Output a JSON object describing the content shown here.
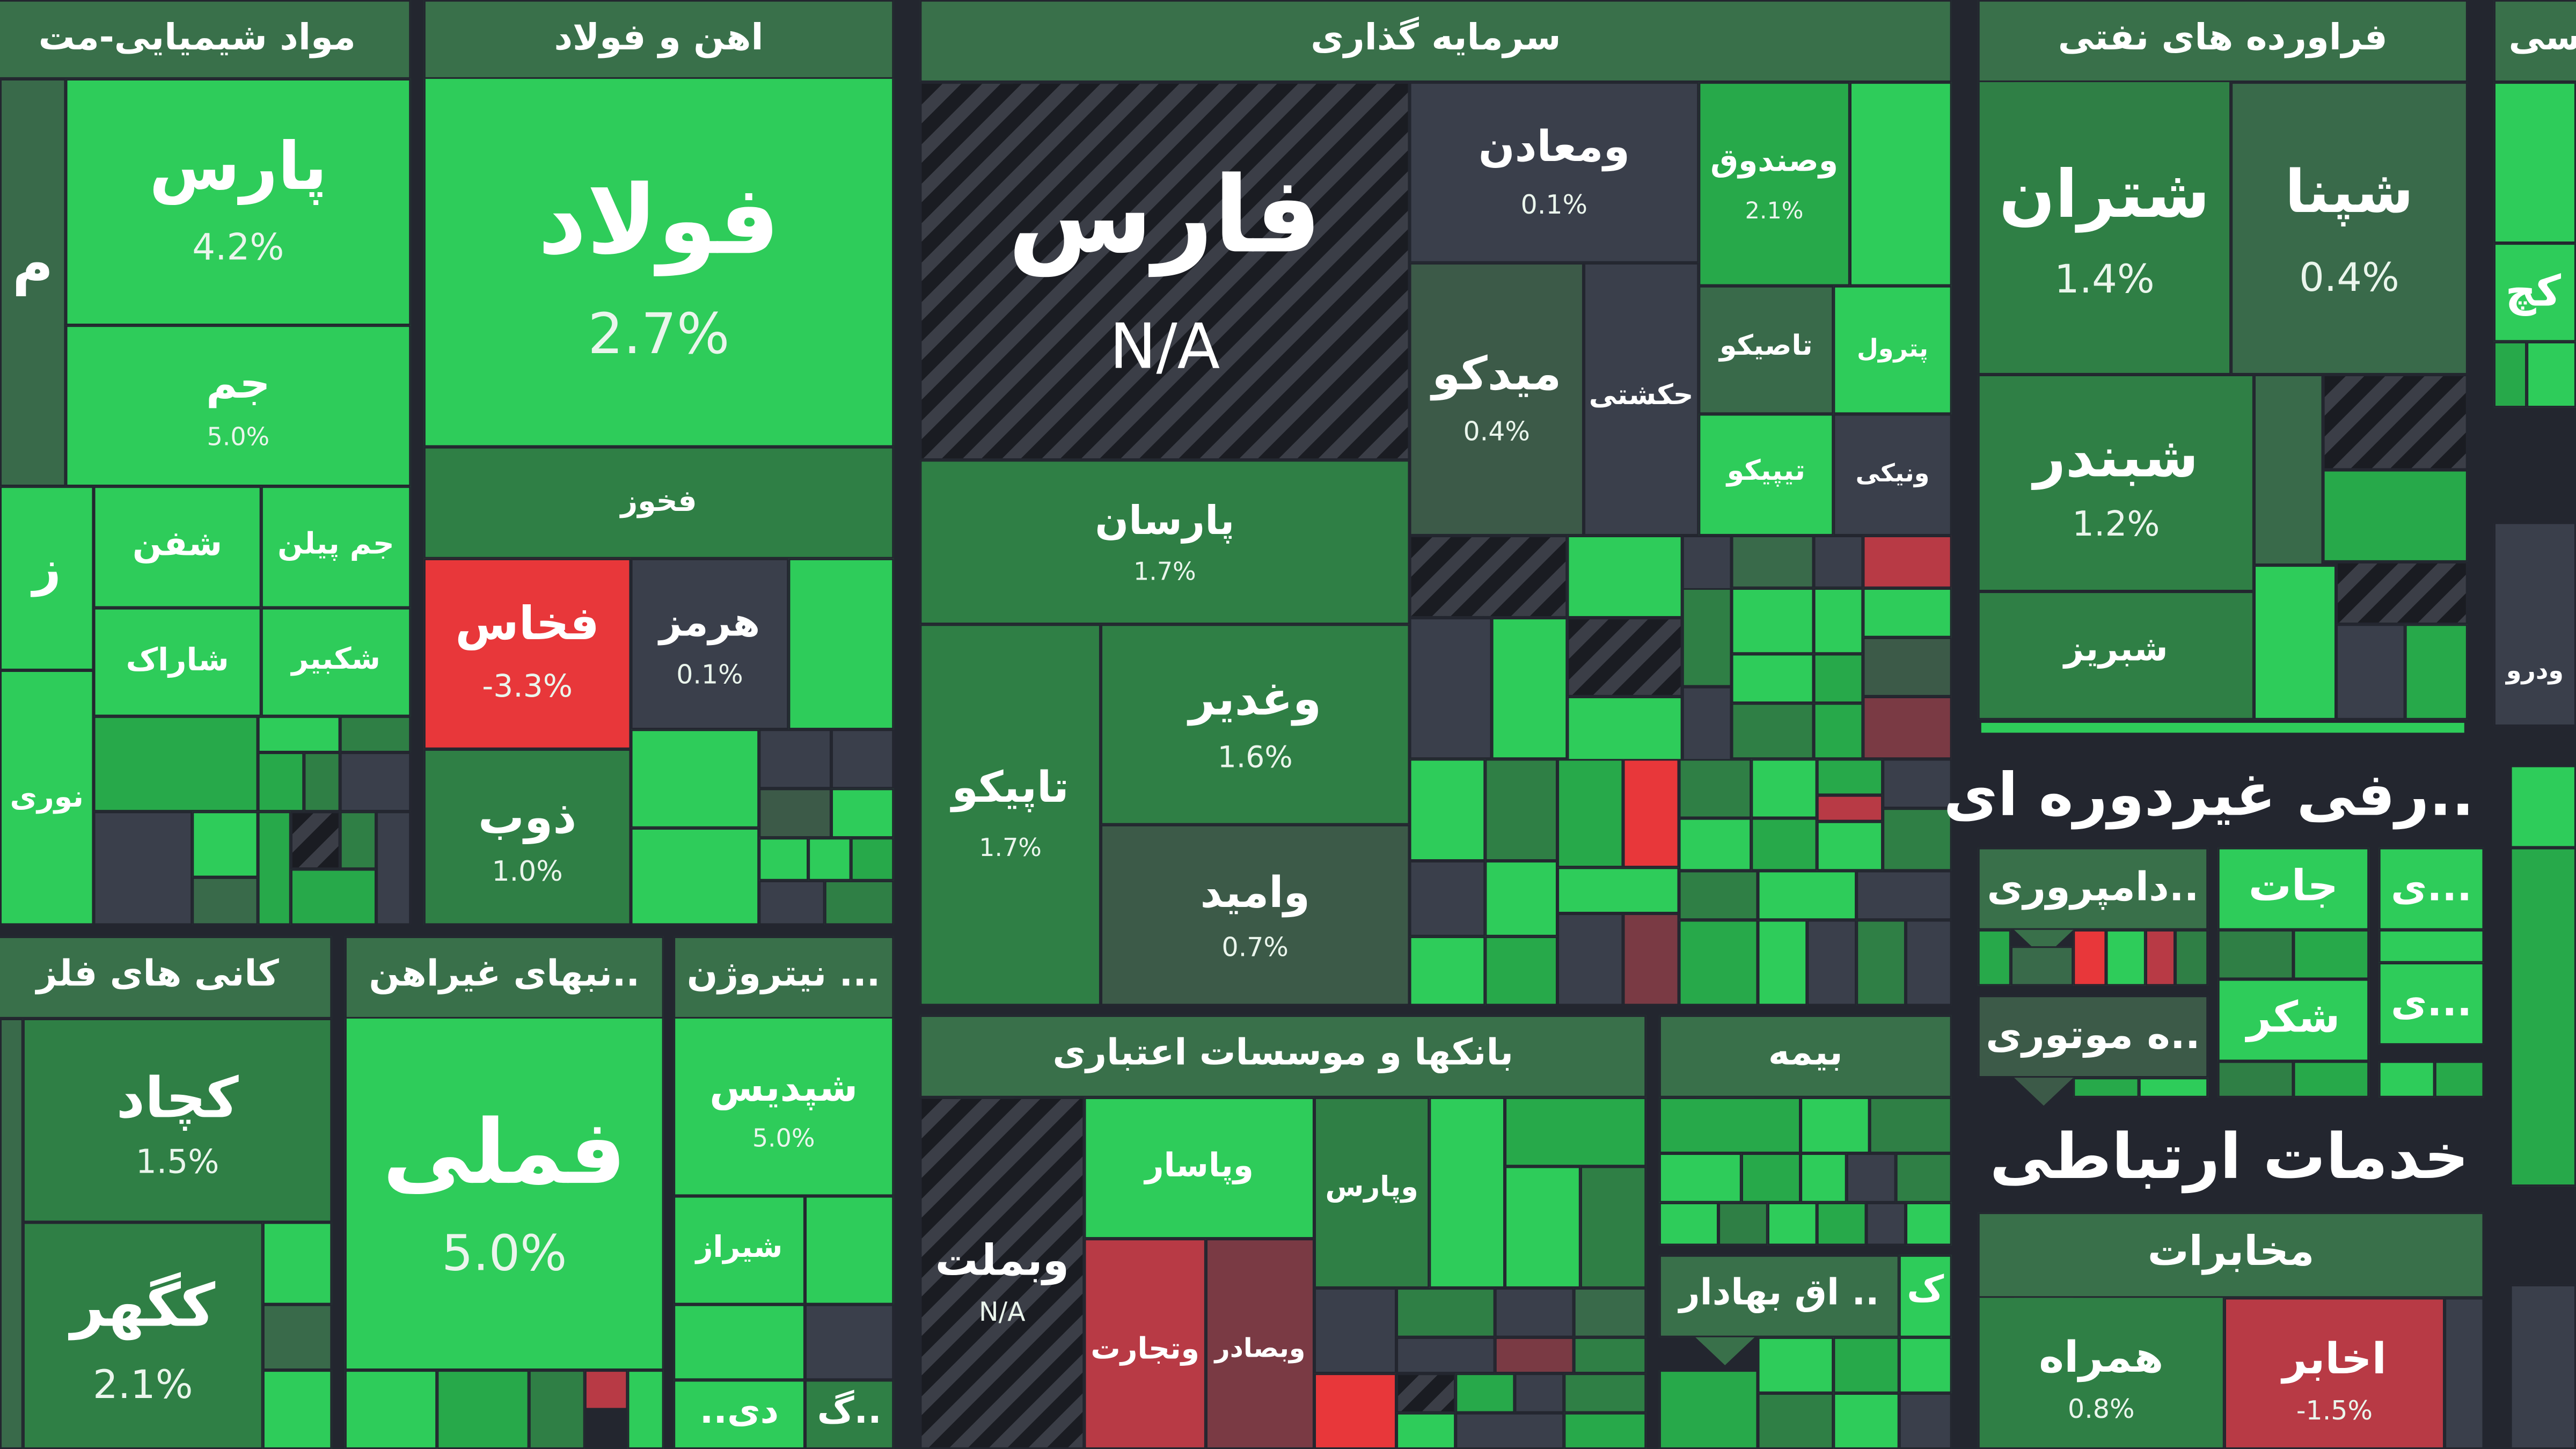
{
  "sectors": {
    "chemicals": "مواد شیمیایی-مت",
    "steel": "اهن و فولاد",
    "investment": "سرمایه گذاری",
    "petroleum": "فراورده های نفتی",
    "mining": "کانی های فلز",
    "nonmetal": "..نبهای غیراهن",
    "fertilizer": "... نیتروژن",
    "banks": "بانکها و موسسات اعتباری",
    "insurance": "بیمه",
    "nonperiodic": "..رفی غیردوره ای",
    "damprori": "..دامپروری",
    "jat": "جات",
    "motori": "..ه موتوری",
    "sugar": "شکر",
    "si1": "...ی",
    "si2": "...ی",
    "securities": ".. اق بهادار",
    "telecom": "خدمات ارتباطی",
    "mokhaberat": "مخابرات",
    "right_edge": "سی",
    "khodro": "ودرو"
  },
  "tiles": {
    "pars": {
      "name": "پارس",
      "pct": "4.2%"
    },
    "jam": {
      "name": "جم",
      "pct": "5.0%"
    },
    "shafan": {
      "name": "شفن"
    },
    "jampilen": {
      "name": "جم پیلن"
    },
    "sharak": {
      "name": "شاراک"
    },
    "shakbir": {
      "name": "شکبیر"
    },
    "nouri": {
      "name": "نوری"
    },
    "foolad": {
      "name": "فولاد",
      "pct": "2.7%"
    },
    "fakhooz": {
      "name": "فخوز"
    },
    "fakhas": {
      "name": "فخاس",
      "pct": "-3.3%"
    },
    "hormoz": {
      "name": "هرمز",
      "pct": "0.1%"
    },
    "zob": {
      "name": "ذوب",
      "pct": "1.0%"
    },
    "fars": {
      "name": "فارس",
      "pct": "N/A"
    },
    "vamaaden": {
      "name": "ومعادن",
      "pct": "0.1%"
    },
    "vasandoogh": {
      "name": "وصندوق",
      "pct": "2.1%"
    },
    "midco": {
      "name": "میدکو",
      "pct": "0.4%"
    },
    "hakashti": {
      "name": "حکشتی"
    },
    "tasico": {
      "name": "تاصیکو"
    },
    "petrol": {
      "name": "پترول"
    },
    "tipico": {
      "name": "تیپیکو"
    },
    "vanik": {
      "name": "ونیکی"
    },
    "parsan": {
      "name": "پارسان",
      "pct": "1.7%"
    },
    "tapico": {
      "name": "تاپیکو",
      "pct": "1.7%"
    },
    "vaghadir": {
      "name": "وغدیر",
      "pct": "1.6%"
    },
    "vaomid": {
      "name": "وامید",
      "pct": "0.7%"
    },
    "shetran": {
      "name": "شتران",
      "pct": "1.4%"
    },
    "shapna": {
      "name": "شپنا",
      "pct": "0.4%"
    },
    "shabandar": {
      "name": "شبندر",
      "pct": "1.2%"
    },
    "shabriz": {
      "name": "شبریز"
    },
    "kechad": {
      "name": "کچاد",
      "pct": "1.5%"
    },
    "kegohar": {
      "name": "کگهر",
      "pct": "2.1%"
    },
    "fameli": {
      "name": "فملی",
      "pct": "5.0%"
    },
    "shepdis": {
      "name": "شپدیس",
      "pct": "5.0%"
    },
    "shiraz": {
      "name": "شیراز"
    },
    "vabemellat": {
      "name": "وبملت",
      "pct": "N/A"
    },
    "vapasar": {
      "name": "وپاسار"
    },
    "vaparsbank": {
      "name": "وپارس"
    },
    "vatejarat": {
      "name": "وتجارت"
    },
    "vabsader": {
      "name": "وبصادر"
    },
    "hamrah": {
      "name": "همراه",
      "pct": "0.8%"
    },
    "akhaber": {
      "name": "اخابر",
      "pct": "-1.5%"
    },
    "gach": {
      "name": "کچ"
    }
  },
  "colors": {
    "background": "#23262f",
    "up_strong": "#2ecc5a",
    "up_mild": "#2f7f45",
    "neutral": "#3a3f4b",
    "down": "#e8373a"
  }
}
